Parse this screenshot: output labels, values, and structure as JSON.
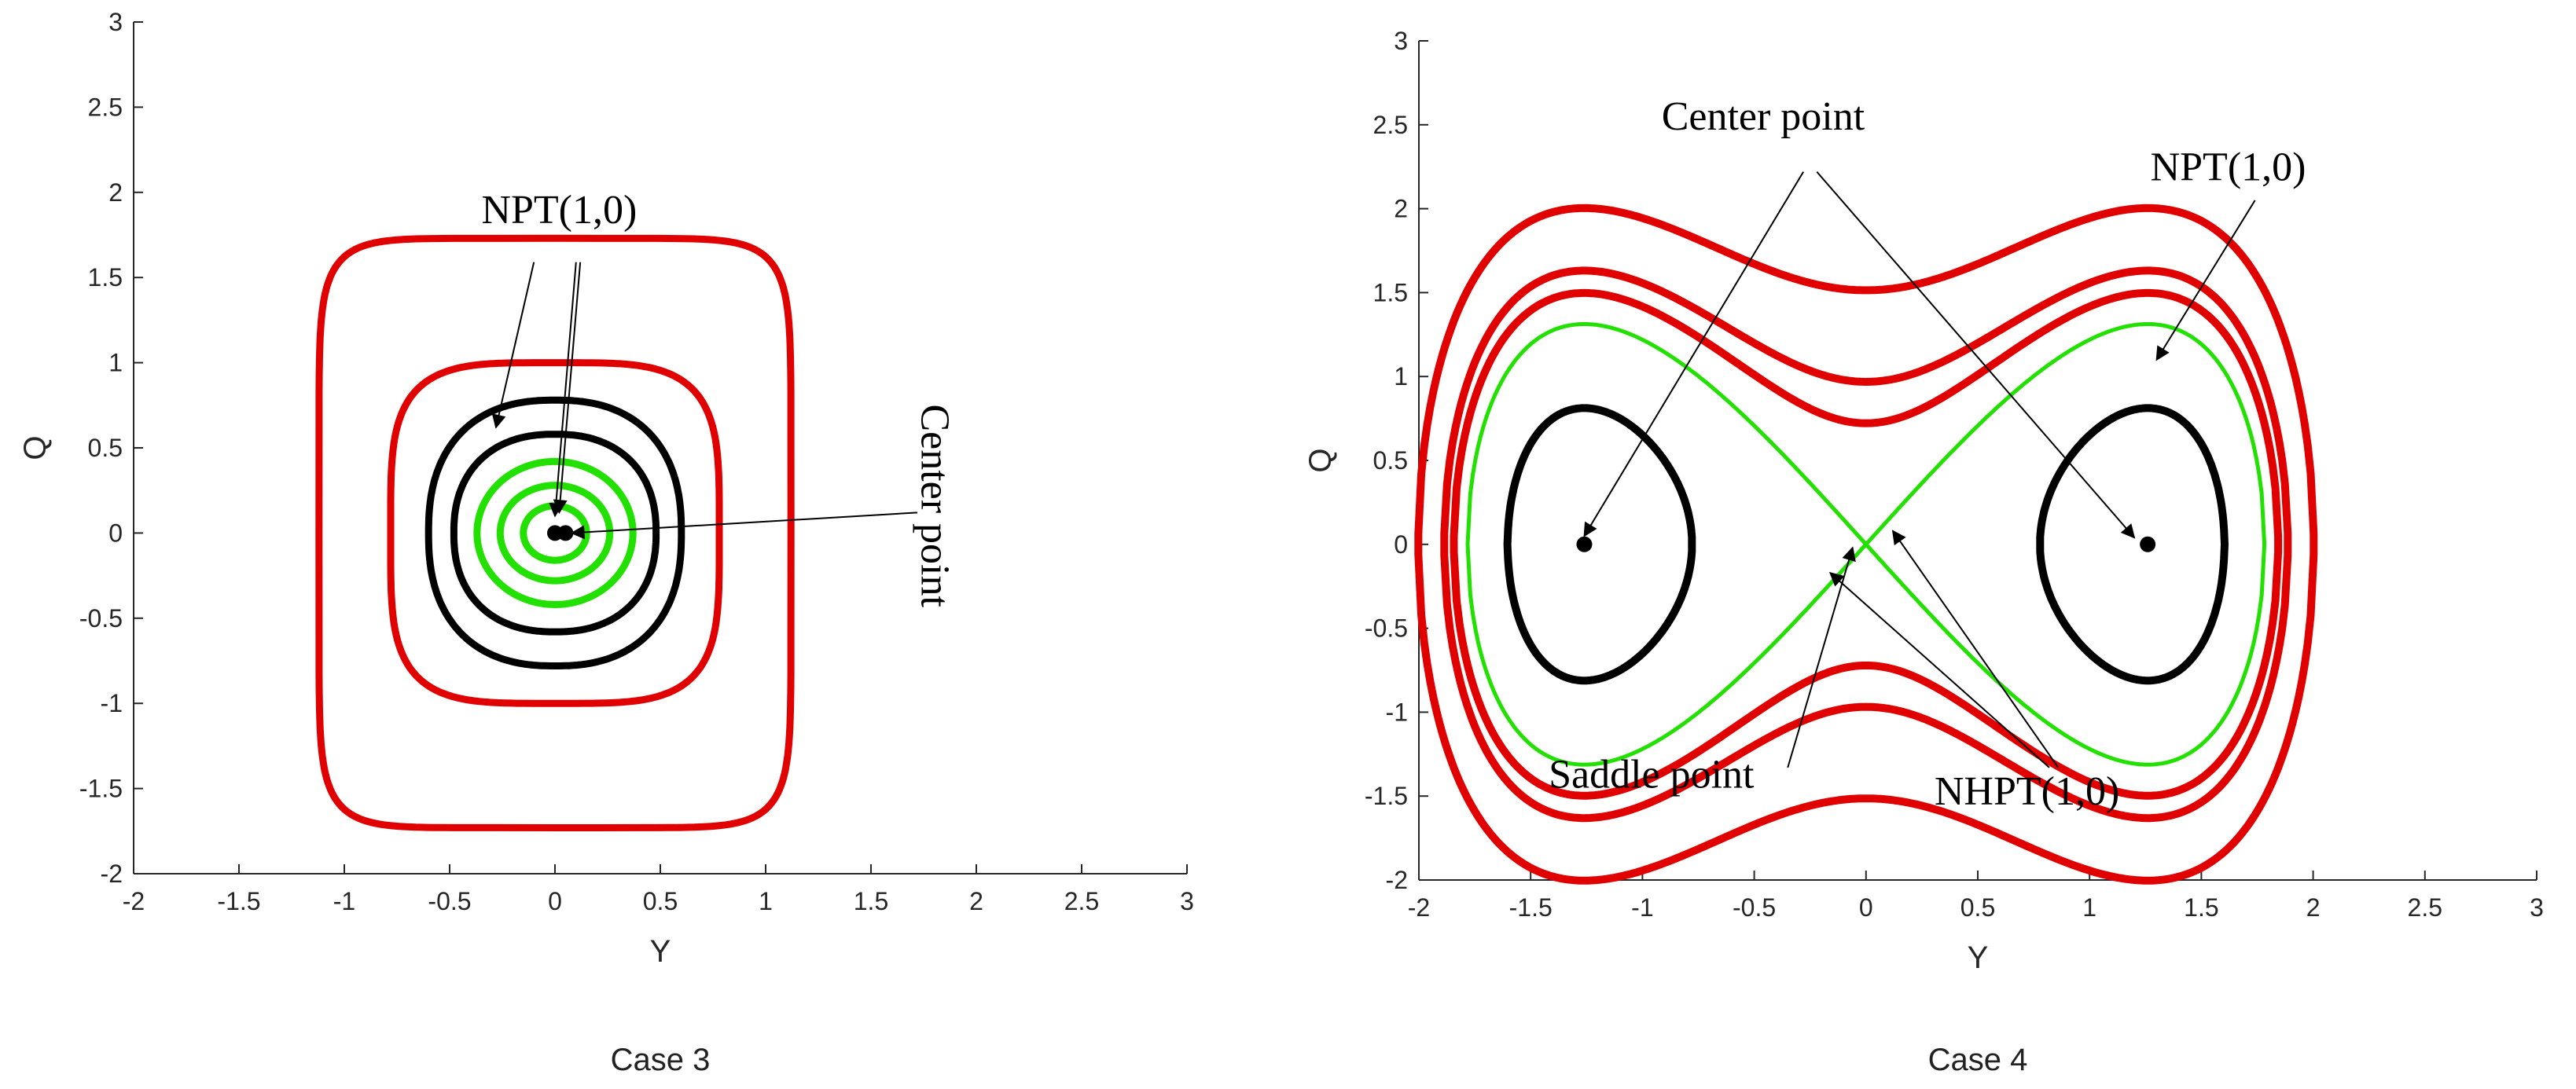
{
  "charts": [
    {
      "id": "case3",
      "caption": "Case 3",
      "chart_data": {
        "type": "line",
        "xlabel": "Y",
        "ylabel": "Q",
        "xlim": [
          -2,
          3
        ],
        "ylim": [
          -2,
          3
        ],
        "xticks": [
          "-2",
          "-1.5",
          "-1",
          "-0.5",
          "0",
          "0.5",
          "1",
          "1.5",
          "2",
          "2.5",
          "3"
        ],
        "yticks": [
          "-2",
          "-1.5",
          "-1",
          "-0.5",
          "0",
          "0.5",
          "1",
          "1.5",
          "2",
          "2.5",
          "3"
        ],
        "grid": false,
        "orbits": [
          {
            "color": "#e00000",
            "cx": 0,
            "cy": 0,
            "a": 1.12,
            "b": 1.73,
            "n": 8
          },
          {
            "color": "#e00000",
            "cx": 0,
            "cy": 0,
            "a": 0.78,
            "b": 1.0,
            "n": 4
          },
          {
            "color": "#000000",
            "cx": 0,
            "cy": 0,
            "a": 0.6,
            "b": 0.78,
            "n": 2.4
          },
          {
            "color": "#000000",
            "cx": 0,
            "cy": 0,
            "a": 0.48,
            "b": 0.58,
            "n": 2.3
          },
          {
            "color": "#22e000",
            "cx": 0,
            "cy": 0,
            "a": 0.37,
            "b": 0.42,
            "n": 2
          },
          {
            "color": "#22e000",
            "cx": 0,
            "cy": 0,
            "a": 0.26,
            "b": 0.28,
            "n": 2
          },
          {
            "color": "#22e000",
            "cx": 0,
            "cy": 0,
            "a": 0.15,
            "b": 0.16,
            "n": 2
          }
        ],
        "points": [
          {
            "x": 0,
            "y": 0
          },
          {
            "x": 0.05,
            "y": 0
          }
        ],
        "annotations": [
          {
            "text": "NPT(1,0)",
            "x": 0.02,
            "y": 1.82,
            "rotate": 0,
            "arrows": [
              [
                -0.28,
                0.62,
                -0.1,
                1.59
              ],
              [
                0.0,
                0.1,
                0.1,
                1.59
              ],
              [
                0.02,
                0.12,
                0.12,
                1.59
              ]
            ]
          },
          {
            "text": "Center point",
            "x": 1.74,
            "y": 0.16,
            "rotate": 90,
            "arrows": [
              [
                0.08,
                0.0,
                1.72,
                0.12
              ]
            ]
          }
        ]
      }
    },
    {
      "id": "case4",
      "caption": "Case 4",
      "chart_data": {
        "type": "line",
        "xlabel": "Y",
        "ylabel": "Q",
        "xlim": [
          -2,
          3
        ],
        "ylim": [
          -2,
          3
        ],
        "xticks": [
          "-2",
          "-1.5",
          "-1",
          "-0.5",
          "0",
          "0.5",
          "1",
          "1.5",
          "2",
          "2.5",
          "3"
        ],
        "yticks": [
          "-2",
          "-1.5",
          "-1",
          "-0.5",
          "0",
          "0.5",
          "1",
          "1.5",
          "2",
          "2.5",
          "3"
        ],
        "grid": false,
        "duffing": [
          {
            "color": "#e00000",
            "energy": 0.05
          },
          {
            "color": "#e00000",
            "energy": 0.09
          },
          {
            "color": "#e00000",
            "energy": 0.22
          }
        ],
        "separatrix": {
          "color": "#22e000"
        },
        "inner_orbits": [
          {
            "color": "#000000",
            "center": -1.26,
            "energy": -0.25
          },
          {
            "color": "#000000",
            "center": 1.26,
            "energy": -0.25
          }
        ],
        "points": [
          {
            "x": -1.26,
            "y": 0
          },
          {
            "x": 1.26,
            "y": 0
          }
        ],
        "annotations": [
          {
            "text": "Center point",
            "x": -0.46,
            "y": 2.47,
            "rotate": 0,
            "arrows": [
              [
                -1.26,
                0.05,
                -0.28,
                2.22
              ],
              [
                1.2,
                0.04,
                -0.22,
                2.22
              ]
            ]
          },
          {
            "text": "NPT(1,0)",
            "x": 1.62,
            "y": 2.17,
            "rotate": 0,
            "arrows": [
              [
                1.3,
                1.1,
                1.74,
                2.05
              ]
            ]
          },
          {
            "text": "Saddle point",
            "x": -0.96,
            "y": -1.45,
            "rotate": 0,
            "arrows": [
              [
                -0.06,
                -0.02,
                -0.35,
                -1.33
              ]
            ]
          },
          {
            "text": "NHPT(1,0)",
            "x": 0.72,
            "y": -1.55,
            "rotate": 0,
            "arrows": [
              [
                -0.16,
                -0.17,
                0.82,
                -1.33
              ],
              [
                0.12,
                0.08,
                0.86,
                -1.33
              ]
            ]
          }
        ]
      }
    }
  ]
}
